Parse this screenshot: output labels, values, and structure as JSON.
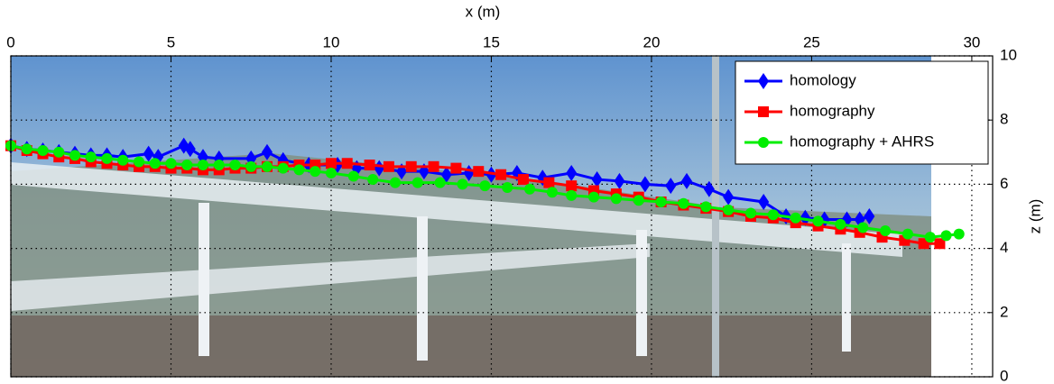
{
  "chart_data": {
    "type": "line",
    "xlabel": "x (m)",
    "ylabel": "z (m)",
    "xlim": [
      0,
      30.65
    ],
    "ylim": [
      0,
      10
    ],
    "xticks": [
      0,
      5,
      10,
      15,
      20,
      25,
      30
    ],
    "yticks": [
      0,
      2,
      4,
      6,
      8,
      10
    ],
    "grid": true,
    "legend": "upper-right",
    "series": [
      {
        "name": "homology",
        "color": "#0000ff",
        "marker": "diamond",
        "x": [
          0,
          0.5,
          1,
          1.5,
          2,
          2.5,
          3,
          3.5,
          4.3,
          4.6,
          5.4,
          5.6,
          6.0,
          6.5,
          7.5,
          8.0,
          8.5,
          9.3,
          10.2,
          10.8,
          11.5,
          12.2,
          12.9,
          13.6,
          14.3,
          15.0,
          15.8,
          16.6,
          17.5,
          18.3,
          19.0,
          19.8,
          20.6,
          21.1,
          21.8,
          22.4,
          23.5,
          24.2,
          24.8,
          25.4,
          26.1,
          26.5,
          26.8
        ],
        "values": [
          7.2,
          7.1,
          7.05,
          7.0,
          6.95,
          6.9,
          6.9,
          6.85,
          6.95,
          6.85,
          7.2,
          7.1,
          6.85,
          6.8,
          6.8,
          7.0,
          6.75,
          6.6,
          6.6,
          6.5,
          6.5,
          6.4,
          6.4,
          6.3,
          6.35,
          6.3,
          6.35,
          6.2,
          6.35,
          6.15,
          6.1,
          6.0,
          5.95,
          6.1,
          5.85,
          5.6,
          5.45,
          5.0,
          4.95,
          4.9,
          4.9,
          4.9,
          5.0
        ]
      },
      {
        "name": "homography",
        "color": "#ff0000",
        "marker": "square",
        "x": [
          0,
          0.5,
          1,
          1.5,
          2,
          2.5,
          3,
          3.5,
          4,
          4.5,
          5,
          5.5,
          6,
          6.5,
          7,
          7.5,
          8,
          8.5,
          9,
          9.5,
          10,
          10.5,
          11.2,
          11.8,
          12.5,
          13.2,
          13.9,
          14.6,
          15.3,
          16.0,
          16.8,
          17.5,
          18.2,
          18.9,
          19.6,
          20.3,
          21.0,
          21.7,
          22.4,
          23.1,
          23.8,
          24.5,
          25.2,
          25.9,
          26.5,
          27.2,
          27.9,
          28.5,
          29.0
        ],
        "values": [
          7.2,
          7.05,
          6.95,
          6.85,
          6.8,
          6.7,
          6.65,
          6.6,
          6.55,
          6.55,
          6.5,
          6.5,
          6.45,
          6.45,
          6.5,
          6.5,
          6.55,
          6.55,
          6.6,
          6.6,
          6.65,
          6.65,
          6.6,
          6.55,
          6.55,
          6.55,
          6.5,
          6.4,
          6.3,
          6.15,
          6.05,
          5.95,
          5.8,
          5.7,
          5.6,
          5.45,
          5.35,
          5.25,
          5.15,
          5.0,
          4.95,
          4.8,
          4.7,
          4.6,
          4.5,
          4.35,
          4.25,
          4.15,
          4.15
        ]
      },
      {
        "name": "homography + AHRS",
        "color": "#00ee00",
        "marker": "circle",
        "x": [
          0,
          0.5,
          1,
          1.5,
          2,
          2.5,
          3,
          3.5,
          4,
          4.5,
          5,
          5.5,
          6,
          6.5,
          7,
          7.5,
          8,
          8.5,
          9,
          9.5,
          10,
          10.7,
          11.3,
          12,
          12.7,
          13.4,
          14.1,
          14.8,
          15.5,
          16.2,
          16.9,
          17.5,
          18.2,
          18.9,
          19.6,
          20.3,
          21.0,
          21.7,
          22.4,
          23.1,
          23.8,
          24.5,
          25.2,
          25.9,
          26.6,
          27.3,
          28.0,
          28.7,
          29.2,
          29.6
        ],
        "values": [
          7.2,
          7.1,
          7.05,
          7.0,
          6.9,
          6.85,
          6.8,
          6.75,
          6.7,
          6.65,
          6.65,
          6.6,
          6.6,
          6.6,
          6.6,
          6.55,
          6.55,
          6.5,
          6.45,
          6.4,
          6.35,
          6.25,
          6.15,
          6.05,
          6.05,
          6.05,
          6.0,
          5.95,
          5.9,
          5.85,
          5.75,
          5.65,
          5.6,
          5.55,
          5.5,
          5.45,
          5.4,
          5.3,
          5.2,
          5.1,
          5.05,
          4.95,
          4.85,
          4.75,
          4.65,
          4.55,
          4.45,
          4.35,
          4.4,
          4.45
        ]
      }
    ]
  }
}
